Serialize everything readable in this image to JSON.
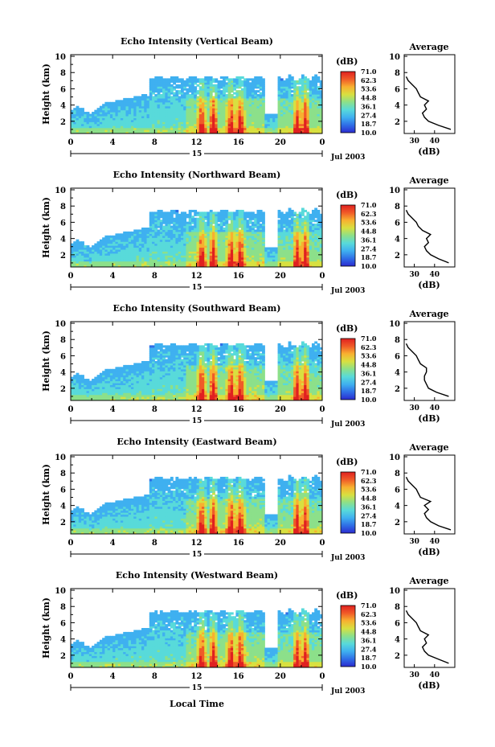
{
  "figure": {
    "date_label": "Jul 2003",
    "day_label": "15",
    "xlabel": "Local Time"
  },
  "colorbar": {
    "unit": "(dB)",
    "ticks": [
      "71.0",
      "62.3",
      "53.6",
      "44.8",
      "36.1",
      "27.4",
      "18.7",
      "10.0"
    ],
    "colors": [
      "#2b2bd0",
      "#2f6ee6",
      "#3fb0f0",
      "#58dada",
      "#8ce08a",
      "#d8e040",
      "#f8b030",
      "#f05a28",
      "#e02020"
    ]
  },
  "chart_data": [
    {
      "type": "heatmap",
      "title": "Echo Intensity (Vertical Beam)",
      "ylabel": "Height (km)",
      "x_ticks": [
        "0",
        "4",
        "8",
        "12",
        "16",
        "20",
        "0"
      ],
      "y_ticks": [
        "2",
        "4",
        "6",
        "8",
        "10"
      ],
      "xlim": [
        0,
        24
      ],
      "ylim": [
        0.5,
        10.2
      ],
      "color_range_db": [
        10.0,
        71.0
      ],
      "profile": {
        "title": "Average",
        "xlabel": "(dB)",
        "x_ticks": [
          "30",
          "40"
        ],
        "xlim": [
          25,
          50
        ],
        "height_km": [
          1.0,
          1.5,
          2.0,
          2.5,
          3.0,
          3.5,
          4.0,
          4.5,
          5.0,
          5.5,
          6.0,
          6.5,
          7.0,
          7.5
        ],
        "db": [
          48,
          42,
          37,
          35,
          34,
          36,
          35,
          37,
          33,
          32,
          31,
          29,
          27,
          26
        ]
      }
    },
    {
      "type": "heatmap",
      "title": "Echo Intensity (Northward Beam)",
      "ylabel": "Height (km)",
      "x_ticks": [
        "0",
        "4",
        "8",
        "12",
        "16",
        "20",
        "0"
      ],
      "y_ticks": [
        "2",
        "4",
        "6",
        "8",
        "10"
      ],
      "xlim": [
        0,
        24
      ],
      "ylim": [
        0.5,
        10.2
      ],
      "color_range_db": [
        10.0,
        71.0
      ],
      "profile": {
        "title": "Average",
        "xlabel": "(dB)",
        "x_ticks": [
          "30",
          "40"
        ],
        "xlim": [
          25,
          50
        ],
        "height_km": [
          1.0,
          1.5,
          2.0,
          2.5,
          3.0,
          3.5,
          4.0,
          4.5,
          5.0,
          5.5,
          6.0,
          6.5,
          7.0,
          7.5
        ],
        "db": [
          47,
          42,
          38,
          36,
          35,
          37,
          36,
          38,
          34,
          32,
          31,
          29,
          27,
          26
        ]
      }
    },
    {
      "type": "heatmap",
      "title": "Echo Intensity (Southward Beam)",
      "ylabel": "Height (km)",
      "x_ticks": [
        "0",
        "4",
        "8",
        "12",
        "16",
        "20",
        "0"
      ],
      "y_ticks": [
        "2",
        "4",
        "6",
        "8",
        "10"
      ],
      "xlim": [
        0,
        24
      ],
      "ylim": [
        0.5,
        10.2
      ],
      "color_range_db": [
        10.0,
        71.0
      ],
      "profile": {
        "title": "Average",
        "xlabel": "(dB)",
        "x_ticks": [
          "30",
          "40"
        ],
        "xlim": [
          25,
          50
        ],
        "height_km": [
          1.0,
          1.5,
          2.0,
          2.5,
          3.0,
          3.5,
          4.0,
          4.5,
          5.0,
          5.5,
          6.0,
          6.5,
          7.0,
          7.5
        ],
        "db": [
          47,
          41,
          37,
          36,
          35,
          35,
          36,
          36,
          33,
          32,
          31,
          29,
          27,
          26
        ]
      }
    },
    {
      "type": "heatmap",
      "title": "Echo Intensity (Eastward Beam)",
      "ylabel": "Height (km)",
      "x_ticks": [
        "0",
        "4",
        "8",
        "12",
        "16",
        "20",
        "0"
      ],
      "y_ticks": [
        "2",
        "4",
        "6",
        "8",
        "10"
      ],
      "xlim": [
        0,
        24
      ],
      "ylim": [
        0.5,
        10.2
      ],
      "color_range_db": [
        10.0,
        71.0
      ],
      "profile": {
        "title": "Average",
        "xlabel": "(dB)",
        "x_ticks": [
          "30",
          "40"
        ],
        "xlim": [
          25,
          50
        ],
        "height_km": [
          1.0,
          1.5,
          2.0,
          2.5,
          3.0,
          3.5,
          4.0,
          4.5,
          5.0,
          5.5,
          6.0,
          6.5,
          7.0,
          7.5
        ],
        "db": [
          48,
          42,
          38,
          36,
          35,
          37,
          35,
          38,
          33,
          32,
          31,
          29,
          27,
          26
        ]
      }
    },
    {
      "type": "heatmap",
      "title": "Echo Intensity (Westward Beam)",
      "ylabel": "Height (km)",
      "x_ticks": [
        "0",
        "4",
        "8",
        "12",
        "16",
        "20",
        "0"
      ],
      "y_ticks": [
        "2",
        "4",
        "6",
        "8",
        "10"
      ],
      "xlim": [
        0,
        24
      ],
      "ylim": [
        0.5,
        10.2
      ],
      "color_range_db": [
        10.0,
        71.0
      ],
      "profile": {
        "title": "Average",
        "xlabel": "(dB)",
        "x_ticks": [
          "30",
          "40"
        ],
        "xlim": [
          25,
          50
        ],
        "height_km": [
          1.0,
          1.5,
          2.0,
          2.5,
          3.0,
          3.5,
          4.0,
          4.5,
          5.0,
          5.5,
          6.0,
          6.5,
          7.0,
          7.5
        ],
        "db": [
          47,
          42,
          37,
          35,
          34,
          36,
          35,
          37,
          33,
          32,
          31,
          29,
          27,
          26
        ]
      }
    }
  ]
}
